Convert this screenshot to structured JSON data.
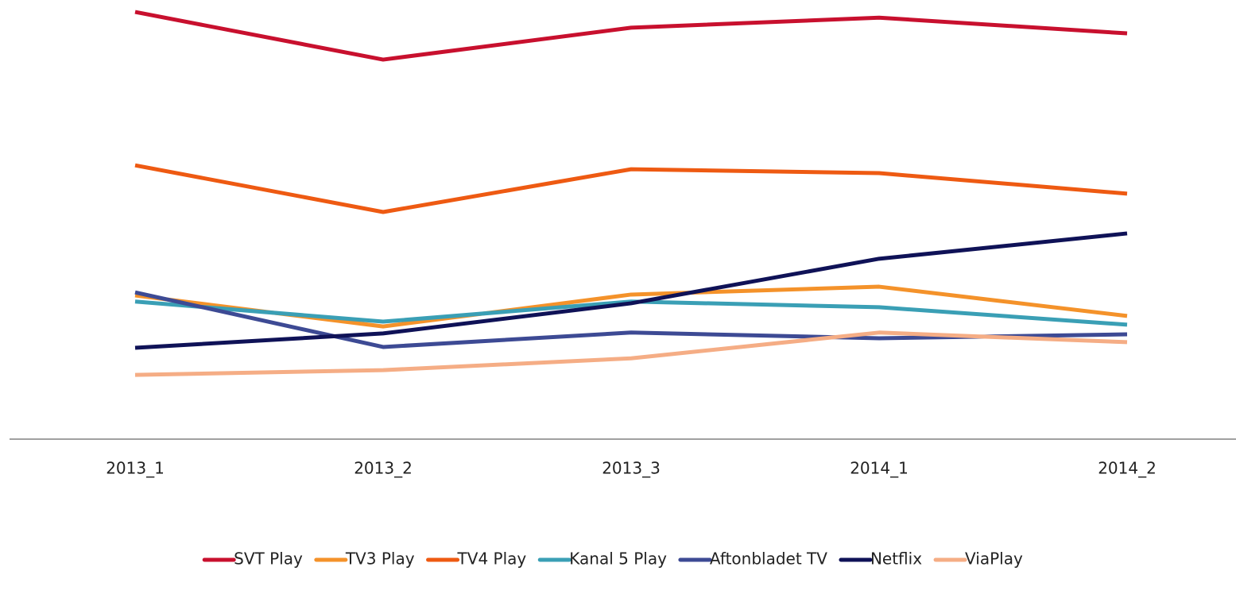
{
  "chart_data": {
    "type": "line",
    "categories": [
      "2013_1",
      "2013_2",
      "2013_3",
      "2014_1",
      "2014_2"
    ],
    "ylim": [
      0,
      100
    ],
    "legend": "bottom",
    "series": [
      {
        "name": "SVT Play",
        "color": "#c8102e",
        "values": [
          97.8,
          86.9,
          94.2,
          96.5,
          92.9
        ]
      },
      {
        "name": "TV3 Play",
        "color": "#f4922a",
        "values": [
          32.9,
          25.8,
          33.1,
          34.9,
          28.2
        ]
      },
      {
        "name": "TV4 Play",
        "color": "#ee5a12",
        "values": [
          62.7,
          52.0,
          61.8,
          60.9,
          56.2
        ]
      },
      {
        "name": "Kanal 5 Play",
        "color": "#3a9fb5",
        "values": [
          31.5,
          26.9,
          31.5,
          30.2,
          26.2
        ]
      },
      {
        "name": "Aftonbladet TV",
        "color": "#3d4a94",
        "values": [
          33.6,
          21.1,
          24.4,
          23.1,
          24.0
        ]
      },
      {
        "name": "Netflix",
        "color": "#0f1257",
        "values": [
          20.9,
          24.2,
          31.1,
          41.3,
          47.1
        ]
      },
      {
        "name": "ViaPlay",
        "color": "#f5ad85",
        "values": [
          14.7,
          15.8,
          18.5,
          24.4,
          22.2
        ]
      }
    ]
  }
}
